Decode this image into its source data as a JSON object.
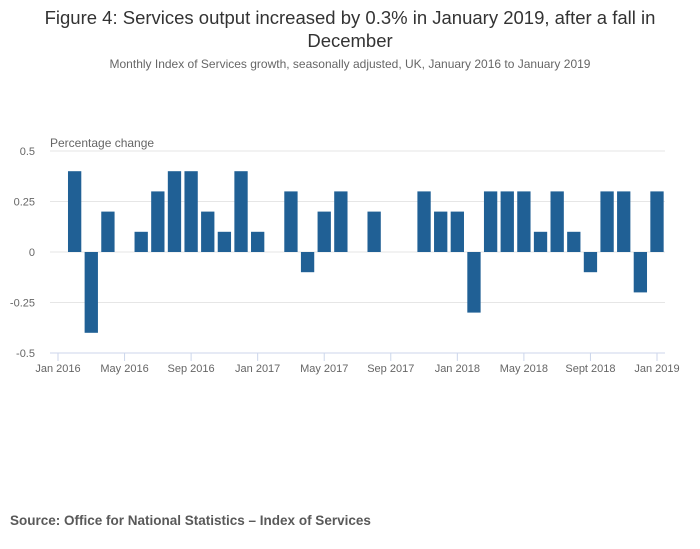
{
  "chart_data": {
    "type": "bar",
    "title": "Figure 4: Services output increased by 0.3% in January 2019, after a fall in December",
    "subtitle": "Monthly Index of Services growth, seasonally adjusted, UK, January 2016 to January 2019",
    "xlabel": "",
    "ylabel": "Percentage change",
    "ylim": [
      -0.5,
      0.5
    ],
    "yticks": [
      0.5,
      0.25,
      0,
      -0.25,
      -0.5
    ],
    "ytick_labels": [
      "0.5",
      "0.25",
      "0",
      "-0.25",
      "-0.5"
    ],
    "grid": true,
    "legend": "none",
    "bar_color": "#206095",
    "xtick_labels": [
      {
        "index": 0,
        "label": "Jan 2016"
      },
      {
        "index": 4,
        "label": "May 2016"
      },
      {
        "index": 8,
        "label": "Sep 2016"
      },
      {
        "index": 12,
        "label": "Jan 2017"
      },
      {
        "index": 16,
        "label": "May 2017"
      },
      {
        "index": 20,
        "label": "Sep 2017"
      },
      {
        "index": 24,
        "label": "Jan 2018"
      },
      {
        "index": 28,
        "label": "May 2018"
      },
      {
        "index": 32,
        "label": "Sept 2018"
      },
      {
        "index": 36,
        "label": "Jan 2019"
      }
    ],
    "categories": [
      "Jan 2016",
      "Feb 2016",
      "Mar 2016",
      "Apr 2016",
      "May 2016",
      "Jun 2016",
      "Jul 2016",
      "Aug 2016",
      "Sep 2016",
      "Oct 2016",
      "Nov 2016",
      "Dec 2016",
      "Jan 2017",
      "Feb 2017",
      "Mar 2017",
      "Apr 2017",
      "May 2017",
      "Jun 2017",
      "Jul 2017",
      "Aug 2017",
      "Sep 2017",
      "Oct 2017",
      "Nov 2017",
      "Dec 2017",
      "Jan 2018",
      "Feb 2018",
      "Mar 2018",
      "Apr 2018",
      "May 2018",
      "Jun 2018",
      "Jul 2018",
      "Aug 2018",
      "Sep 2018",
      "Oct 2018",
      "Nov 2018",
      "Dec 2018",
      "Jan 2019"
    ],
    "values": [
      0,
      0.4,
      -0.4,
      0.2,
      0,
      0.1,
      0.3,
      0.4,
      0.4,
      0.2,
      0.1,
      0.4,
      0.1,
      0,
      0.3,
      -0.1,
      0.2,
      0.3,
      0,
      0.2,
      0,
      0,
      0.3,
      0.2,
      0.2,
      -0.3,
      0.3,
      0.3,
      0.3,
      0.1,
      0.3,
      0.1,
      -0.1,
      0.3,
      0.3,
      -0.2,
      0.3
    ]
  },
  "source": "Source: Office for National Statistics – Index of Services"
}
